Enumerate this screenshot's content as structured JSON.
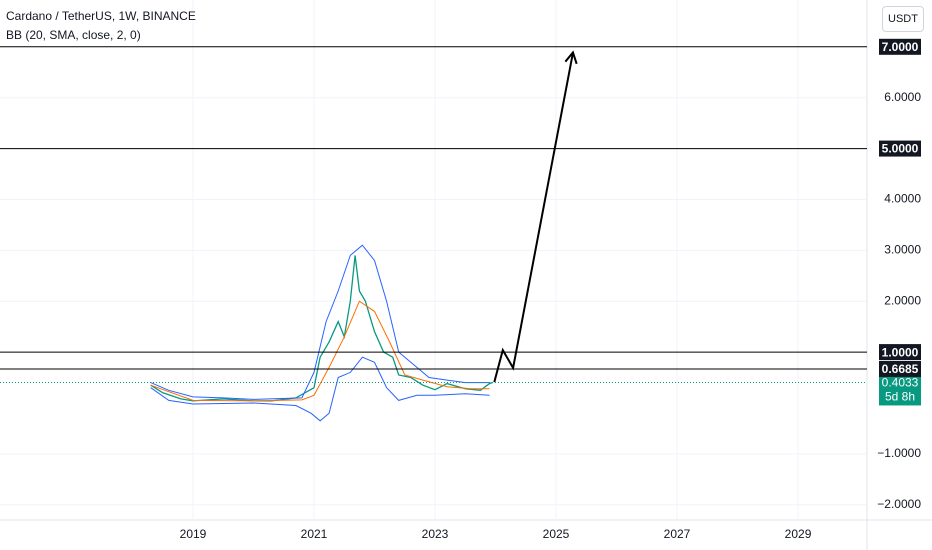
{
  "chart_data": {
    "type": "line",
    "title": "Cardano / TetherUS, 1W, BINANCE",
    "indicator": "BB (20, SMA, close, 2, 0)",
    "currency": "USDT",
    "xlim": [
      2015.81,
      2030.14
    ],
    "ylim": [
      -2.3,
      7.92
    ],
    "xticks": [
      2019,
      2021,
      2023,
      2025,
      2027,
      2029
    ],
    "yticks": [
      {
        "value": 6,
        "label": "6.0000"
      },
      {
        "value": 4,
        "label": "4.0000"
      },
      {
        "value": 3,
        "label": "3.0000"
      },
      {
        "value": 2,
        "label": "2.0000"
      },
      {
        "value": -1,
        "label": "−1.0000"
      },
      {
        "value": -2,
        "label": "−2.0000"
      }
    ],
    "grid": true,
    "series": [
      {
        "color": "#089981",
        "width": 1.3,
        "x": [
          2018.3,
          2018.5,
          2018.8,
          2019.0,
          2019.5,
          2020.0,
          2020.3,
          2020.7,
          2021.0,
          2021.1,
          2021.25,
          2021.4,
          2021.5,
          2021.6,
          2021.68,
          2021.75,
          2021.85,
          2022.0,
          2022.15,
          2022.3,
          2022.4,
          2022.6,
          2022.8,
          2023.0,
          2023.2,
          2023.5,
          2023.75,
          2023.9,
          2023.95
        ],
        "values": [
          0.35,
          0.2,
          0.08,
          0.04,
          0.08,
          0.04,
          0.04,
          0.1,
          0.3,
          0.9,
          1.2,
          1.6,
          1.3,
          2.0,
          2.9,
          2.2,
          2.0,
          1.4,
          1.0,
          0.9,
          0.55,
          0.5,
          0.35,
          0.26,
          0.38,
          0.28,
          0.25,
          0.38,
          0.4033
        ]
      },
      {
        "color": "#2962ff",
        "width": 1,
        "x": [
          2018.3,
          2018.6,
          2019.0,
          2019.5,
          2020.0,
          2020.8,
          2021.0,
          2021.2,
          2021.4,
          2021.6,
          2021.8,
          2022.0,
          2022.2,
          2022.4,
          2022.6,
          2022.9,
          2023.2,
          2023.5,
          2023.9
        ],
        "values": [
          0.4,
          0.25,
          0.12,
          0.1,
          0.07,
          0.1,
          0.6,
          1.6,
          2.2,
          2.9,
          3.1,
          2.8,
          2.0,
          1.0,
          0.8,
          0.5,
          0.45,
          0.4,
          0.4
        ]
      },
      {
        "color": "#2962ff",
        "width": 1,
        "x": [
          2018.3,
          2018.6,
          2019.0,
          2020.0,
          2020.7,
          2020.95,
          2021.1,
          2021.25,
          2021.4,
          2021.6,
          2021.8,
          2022.0,
          2022.2,
          2022.4,
          2022.7,
          2023.0,
          2023.5,
          2023.9
        ],
        "values": [
          0.3,
          0.05,
          -0.02,
          0.0,
          -0.05,
          -0.2,
          -0.35,
          -0.2,
          0.5,
          0.6,
          0.9,
          0.8,
          0.3,
          0.05,
          0.15,
          0.15,
          0.18,
          0.15
        ]
      },
      {
        "color": "#ff6d00",
        "width": 1,
        "x": [
          2018.3,
          2019.0,
          2020.0,
          2020.8,
          2021.0,
          2021.25,
          2021.5,
          2021.75,
          2022.0,
          2022.25,
          2022.5,
          2022.8,
          2023.2,
          2023.6,
          2023.9
        ],
        "values": [
          0.35,
          0.05,
          0.04,
          0.06,
          0.15,
          0.7,
          1.3,
          2.0,
          1.8,
          1.2,
          0.55,
          0.45,
          0.32,
          0.28,
          0.28
        ]
      }
    ],
    "levels": [
      {
        "value": 7,
        "label": "7.0000"
      },
      {
        "value": 5,
        "label": "5.0000"
      },
      {
        "value": 1,
        "label": "1.0000"
      },
      {
        "value": 0.6685,
        "label": "0.6685"
      }
    ],
    "current_price": {
      "value": 0.4033,
      "label": "0.4033",
      "countdown": "5d 8h",
      "color": "#089981"
    },
    "projection": {
      "x": [
        2023.98,
        2024.12,
        2024.29,
        2025.28
      ],
      "values": [
        0.41,
        1.04,
        0.69,
        6.89
      ]
    }
  }
}
